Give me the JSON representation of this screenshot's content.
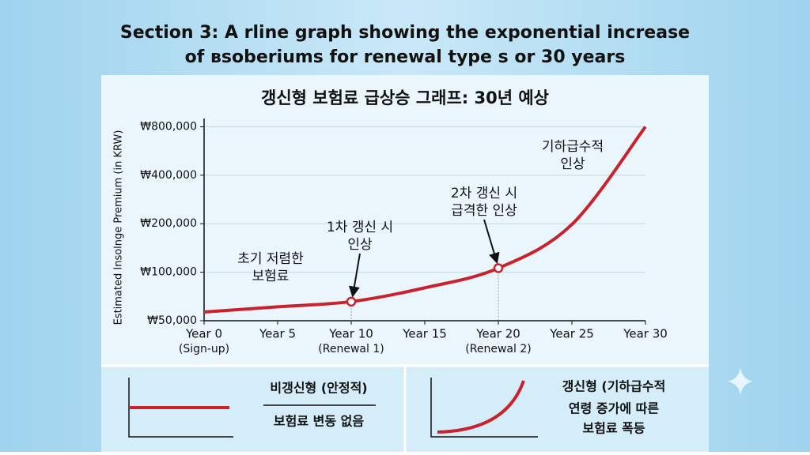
{
  "header": {
    "lines": [
      "Section 3: A rline graph showing the exponential increase",
      "of ʙsoberiums for renewal type s or 30 years"
    ]
  },
  "chart_data": {
    "type": "line",
    "title": "갱신형 보험료 급상승 그래프: 30년 예상",
    "y_label": "Estimated Insolnge Premium (in KRW)",
    "x": [
      0,
      5,
      10,
      15,
      20,
      25,
      30
    ],
    "series": [
      {
        "color": "#c8232c",
        "values": [
          56600,
          61000,
          65700,
          80000,
          106000,
          198000,
          800000
        ]
      }
    ],
    "xlim": [
      0,
      30
    ],
    "xticks": [
      {
        "value": 0,
        "label": "Year 0"
      },
      {
        "value": 5,
        "label": "Year 5"
      },
      {
        "value": 10,
        "label": "Year 10"
      },
      {
        "value": 15,
        "label": "Year 15"
      },
      {
        "value": 20,
        "label": "Year 20"
      },
      {
        "value": 25,
        "label": "Year 25"
      },
      {
        "value": 30,
        "label": "Year 30"
      }
    ],
    "xtick_notes": [
      {
        "value": 0,
        "label": "(Sign-up)"
      },
      {
        "value": 10,
        "label": "(Renewal 1)"
      },
      {
        "value": 20,
        "label": "(Renewal 2)"
      }
    ],
    "ylim": [
      50000,
      900000
    ],
    "log_y": true,
    "yticks": [
      {
        "value": 50000,
        "label": "₩50,000"
      },
      {
        "value": 100000,
        "label": "₩100,000"
      },
      {
        "value": 200000,
        "label": "₩200,000"
      },
      {
        "value": 400000,
        "label": "₩400,000"
      },
      {
        "value": 800000,
        "label": "₩800,000"
      }
    ],
    "grid": true,
    "highlight_x": [
      10,
      20
    ],
    "annotations": [
      {
        "lines": [
          "초기 저렴한",
          "보험료"
        ]
      },
      {
        "lines": [
          "1차 갱신 시",
          "인상"
        ],
        "arrow_to_x": 10
      },
      {
        "lines": [
          "2차 갱신 시",
          "급격한 인상"
        ],
        "arrow_to_x": 20
      },
      {
        "lines": [
          "기하급수적",
          "인상"
        ]
      }
    ]
  },
  "comparison": {
    "left": {
      "title": "비갱신형 (안정적)",
      "desc": [
        "보험료 변동 없음"
      ]
    },
    "right": {
      "title": "갱신형 (기하급수적",
      "desc": [
        "연령 증가에 따른",
        "보험료 폭등"
      ]
    }
  }
}
